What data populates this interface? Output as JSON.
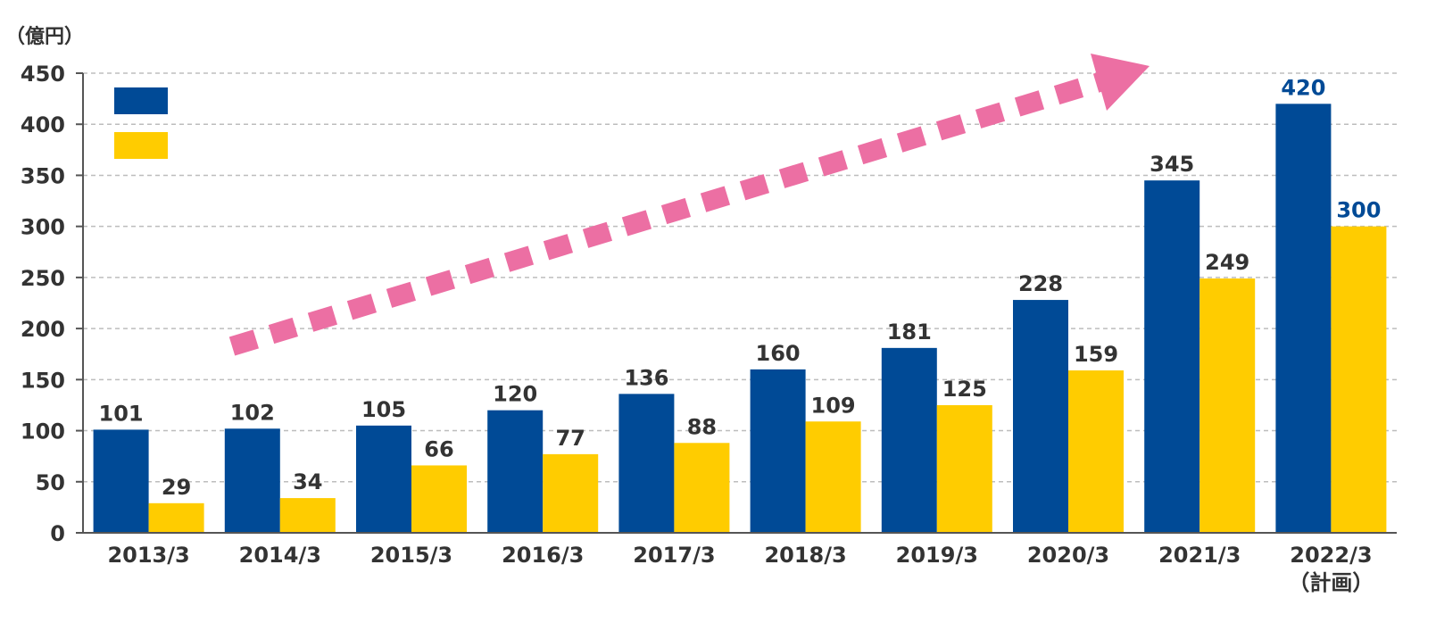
{
  "chart_data": {
    "type": "bar",
    "unit_label": "（億円）",
    "categories": [
      "2013/3",
      "2014/3",
      "2015/3",
      "2016/3",
      "2017/3",
      "2018/3",
      "2019/3",
      "2020/3",
      "2021/3",
      "2022/3"
    ],
    "category_notes": [
      "",
      "",
      "",
      "",
      "",
      "",
      "",
      "",
      "",
      "（計画）"
    ],
    "series": [
      {
        "values": [
          101,
          102,
          105,
          120,
          136,
          160,
          181,
          228,
          345,
          420
        ]
      },
      {
        "values": [
          29,
          34,
          66,
          77,
          88,
          109,
          125,
          159,
          249,
          300
        ]
      }
    ],
    "ylim": [
      0,
      450
    ],
    "yticks": [
      0,
      50,
      100,
      150,
      200,
      250,
      300,
      350,
      400,
      450
    ],
    "grid": true,
    "legend": "top-left",
    "colors": {
      "series1": "#004a96",
      "series2": "#ffcc00",
      "trend_arrow": "#ec6fa3",
      "label_default": "#333333",
      "label_highlight": "#004a96",
      "grid": "#bdbdbd",
      "axis": "#555555"
    },
    "highlight_last": true,
    "trend_arrow": "dashed-up-right"
  }
}
